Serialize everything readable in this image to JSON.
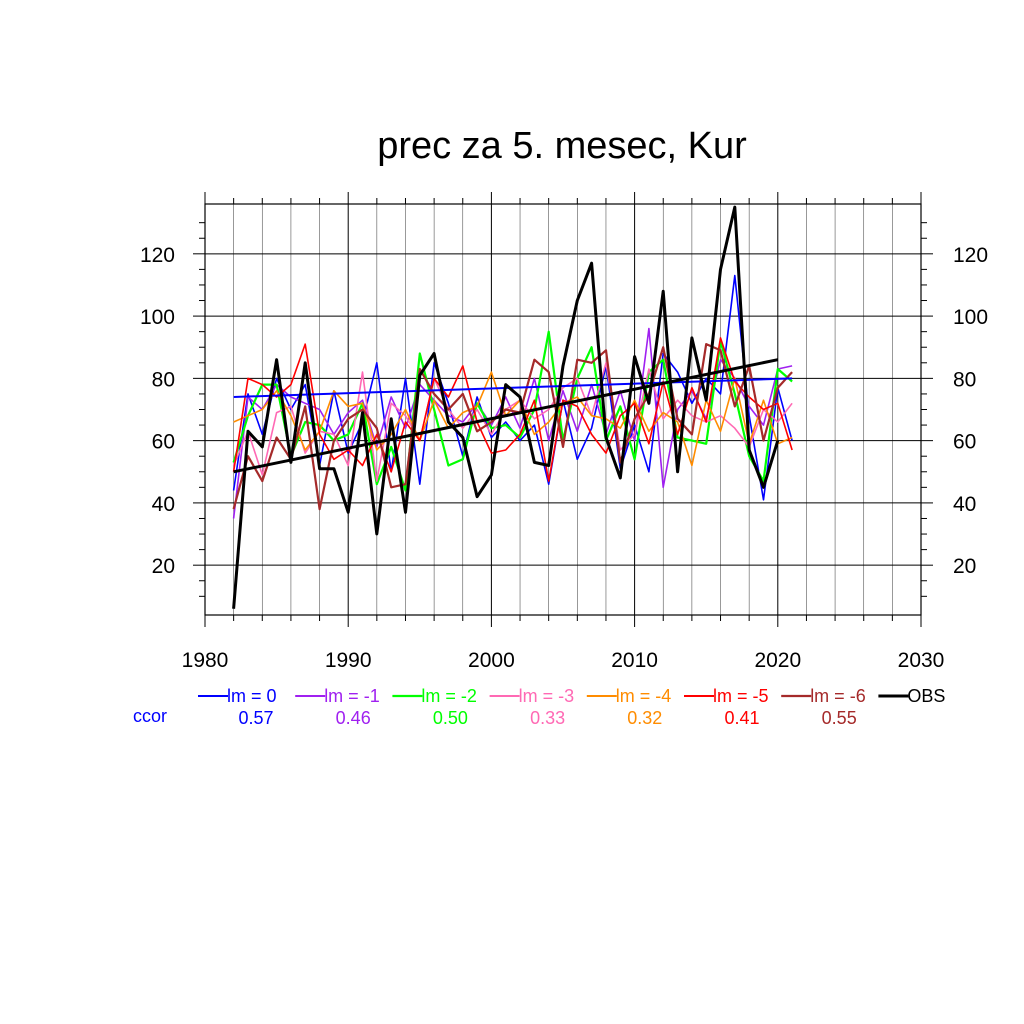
{
  "chart_data": {
    "type": "line",
    "title": "prec za 5. mesec, Kur",
    "xlabel": "",
    "ylabel": "",
    "xlim": [
      1980,
      2030
    ],
    "ylim": [
      4,
      136
    ],
    "xticks": [
      1980,
      1990,
      2000,
      2010,
      2020,
      2030
    ],
    "yticks": [
      20,
      40,
      60,
      80,
      100,
      120
    ],
    "grid": true,
    "ccor_label": "ccor",
    "x": [
      1982,
      1983,
      1984,
      1985,
      1986,
      1987,
      1988,
      1989,
      1990,
      1991,
      1992,
      1993,
      1994,
      1995,
      1996,
      1997,
      1998,
      1999,
      2000,
      2001,
      2002,
      2003,
      2004,
      2005,
      2006,
      2007,
      2008,
      2009,
      2010,
      2011,
      2012,
      2013,
      2014,
      2015,
      2016,
      2017,
      2018,
      2019,
      2020,
      2021
    ],
    "series": [
      {
        "name": "lm = 0",
        "color": "#0000ff",
        "width": 1.6,
        "ccor": "0.57",
        "values": [
          44,
          75,
          62,
          80,
          70,
          78,
          52,
          76,
          56,
          66,
          85,
          50,
          80,
          46,
          85,
          72,
          55,
          74,
          61,
          66,
          60,
          65,
          46,
          73,
          54,
          64,
          84,
          51,
          65,
          50,
          88,
          82,
          72,
          80,
          75,
          113,
          68,
          41,
          77,
          60
        ]
      },
      {
        "name": "lm = -1",
        "color": "#a020f0",
        "width": 1.6,
        "ccor": "0.46",
        "values": [
          35,
          74,
          70,
          78,
          74,
          72,
          70,
          62,
          69,
          73,
          58,
          74,
          64,
          78,
          73,
          68,
          66,
          72,
          65,
          74,
          64,
          80,
          60,
          76,
          63,
          78,
          62,
          76,
          60,
          96,
          45,
          70,
          76,
          67,
          86,
          80,
          71,
          65,
          83,
          84
        ]
      },
      {
        "name": "lm = -2",
        "color": "#00ff00",
        "width": 2.2,
        "ccor": "0.50",
        "values": [
          53,
          68,
          78,
          78,
          55,
          66,
          65,
          60,
          62,
          72,
          46,
          58,
          44,
          88,
          70,
          52,
          54,
          72,
          64,
          65,
          61,
          70,
          95,
          60,
          80,
          90,
          60,
          71,
          54,
          82,
          86,
          61,
          60,
          59,
          92,
          75,
          55,
          47,
          83,
          79
        ]
      },
      {
        "name": "lm = -3",
        "color": "#ff69b4",
        "width": 1.6,
        "ccor": "0.33",
        "values": [
          52,
          63,
          49,
          69,
          71,
          56,
          63,
          62,
          52,
          82,
          47,
          72,
          68,
          60,
          80,
          70,
          64,
          70,
          62,
          70,
          73,
          67,
          70,
          77,
          80,
          68,
          85,
          57,
          62,
          83,
          67,
          73,
          68,
          66,
          68,
          64,
          58,
          70,
          66,
          72
        ]
      },
      {
        "name": "lm = -4",
        "color": "#ff8c00",
        "width": 1.6,
        "ccor": "0.32",
        "values": [
          66,
          68,
          70,
          76,
          68,
          57,
          63,
          76,
          71,
          72,
          57,
          62,
          70,
          60,
          73,
          64,
          69,
          71,
          82,
          68,
          73,
          62,
          66,
          72,
          74,
          68,
          67,
          64,
          73,
          63,
          69,
          66,
          52,
          73,
          63,
          80,
          59,
          73,
          59,
          61
        ]
      },
      {
        "name": "lm = -5",
        "color": "#ff0000",
        "width": 1.6,
        "ccor": "0.41",
        "values": [
          50,
          80,
          78,
          74,
          78,
          91,
          62,
          54,
          57,
          52,
          62,
          50,
          66,
          60,
          80,
          74,
          84,
          66,
          56,
          57,
          62,
          73,
          47,
          73,
          71,
          62,
          56,
          68,
          72,
          59,
          79,
          62,
          77,
          66,
          93,
          79,
          74,
          70,
          72,
          57
        ]
      },
      {
        "name": "lm = -6",
        "color": "#a52a2a",
        "width": 2.2,
        "ccor": "0.55",
        "values": [
          38,
          55,
          47,
          61,
          54,
          71,
          38,
          60,
          67,
          70,
          64,
          45,
          46,
          83,
          75,
          70,
          75,
          63,
          66,
          70,
          69,
          86,
          82,
          58,
          86,
          85,
          89,
          53,
          67,
          75,
          90,
          67,
          62,
          91,
          89,
          71,
          84,
          60,
          77,
          82
        ]
      }
    ],
    "obs": {
      "name": "OBS",
      "color": "#000000",
      "width": 3,
      "values": [
        6,
        63,
        58,
        86,
        53,
        85,
        51,
        51,
        37,
        69,
        30,
        67,
        37,
        81,
        88,
        66,
        61,
        42,
        49,
        78,
        74,
        53,
        52,
        84,
        105,
        117,
        61,
        48,
        87,
        72,
        108,
        50,
        93,
        73,
        115,
        135,
        57,
        45,
        60,
        null
      ]
    },
    "trends": [
      {
        "name": "lm = 0 trend",
        "color": "#0000ff",
        "width": 2,
        "x": [
          1982,
          2021
        ],
        "values": [
          74,
          80
        ]
      },
      {
        "name": "OBS trend",
        "color": "#000000",
        "width": 3,
        "x": [
          1982,
          2020
        ],
        "values": [
          50,
          86
        ]
      }
    ]
  }
}
